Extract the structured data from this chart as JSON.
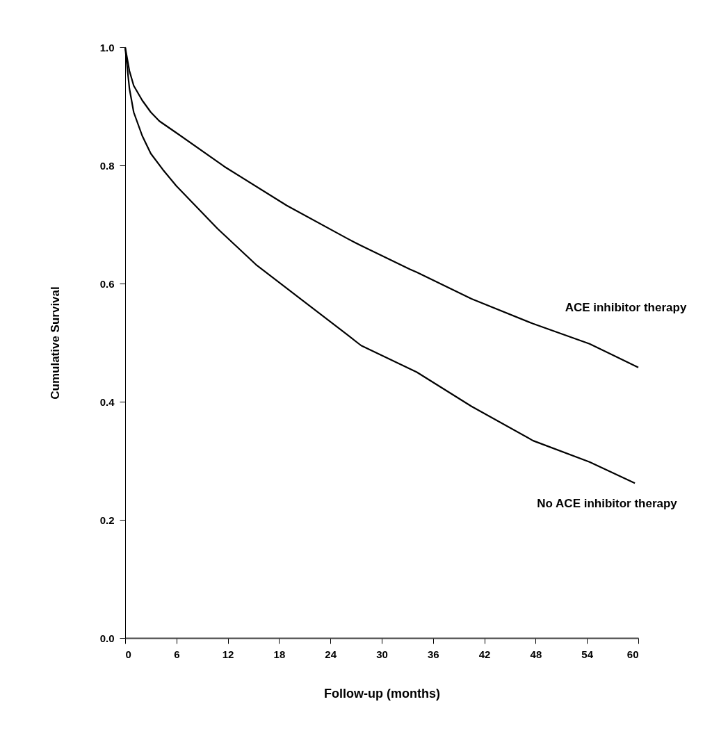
{
  "chart_data": {
    "type": "line",
    "xlabel": "Follow-up (months)",
    "ylabel": "Cumulative Survival",
    "xlim": [
      0,
      60
    ],
    "xticks": [
      0,
      6,
      12,
      18,
      24,
      30,
      36,
      42,
      48,
      54,
      60
    ],
    "ylim": [
      0,
      1
    ],
    "yticks": [
      {
        "value": 0,
        "label": "0.0"
      },
      0.2,
      0.4,
      0.6,
      0.8,
      {
        "value": 1,
        "label": "1.0"
      }
    ],
    "grid": false,
    "legend": false,
    "marker": "none",
    "line_style": "solid",
    "series": [
      {
        "name": "ACE inhibitor therapy",
        "color": "#000000",
        "x": [
          0,
          0.5,
          1,
          2,
          3,
          4,
          6,
          11.6,
          18.9,
          26.0,
          27.6,
          33.3,
          34.1,
          40.5,
          47.7,
          54.3,
          60
        ],
        "values": [
          1.0,
          0.96,
          0.935,
          0.91,
          0.89,
          0.875,
          0.855,
          0.798,
          0.732,
          0.676,
          0.664,
          0.624,
          0.619,
          0.574,
          0.532,
          0.498,
          0.458
        ]
      },
      {
        "name": "No ACE inhibitor therapy",
        "color": "#000000",
        "x": [
          0,
          0.5,
          1,
          2,
          3,
          4.4,
          6,
          8,
          10.8,
          15.3,
          20.7,
          26.0,
          27.6,
          34.1,
          40.5,
          47.7,
          54.3,
          59.6
        ],
        "values": [
          1.0,
          0.93,
          0.89,
          0.85,
          0.82,
          0.793,
          0.765,
          0.735,
          0.693,
          0.632,
          0.572,
          0.513,
          0.495,
          0.45,
          0.392,
          0.334,
          0.298,
          0.262
        ]
      }
    ]
  }
}
